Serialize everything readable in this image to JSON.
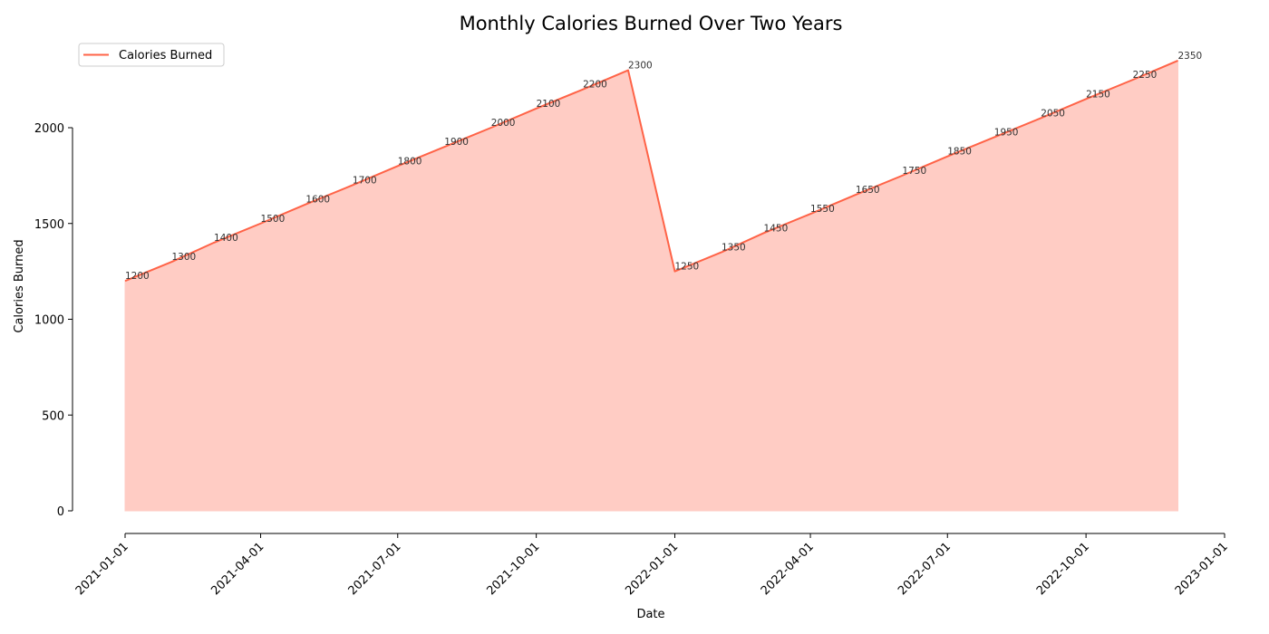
{
  "chart_data": {
    "type": "area",
    "title": "Monthly Calories Burned Over Two Years",
    "xlabel": "Date",
    "ylabel": "Calories Burned",
    "legend_position": "top-left",
    "grid": false,
    "series": [
      {
        "name": "Calories Burned",
        "color": "#ff6347",
        "fill_color": "#ffccc4",
        "x": [
          "2021-01-01",
          "2021-02-01",
          "2021-03-01",
          "2021-04-01",
          "2021-05-01",
          "2021-06-01",
          "2021-07-01",
          "2021-08-01",
          "2021-09-01",
          "2021-10-01",
          "2021-11-01",
          "2021-12-01",
          "2022-01-01",
          "2022-02-01",
          "2022-03-01",
          "2022-04-01",
          "2022-05-01",
          "2022-06-01",
          "2022-07-01",
          "2022-08-01",
          "2022-09-01",
          "2022-10-01",
          "2022-11-01",
          "2022-12-01"
        ],
        "values": [
          1200,
          1300,
          1400,
          1500,
          1600,
          1700,
          1800,
          1900,
          2000,
          2100,
          2200,
          2300,
          1250,
          1350,
          1450,
          1550,
          1650,
          1750,
          1850,
          1950,
          2050,
          2150,
          2250,
          2350
        ],
        "labels": [
          "1200",
          "1300",
          "1400",
          "1500",
          "1600",
          "1700",
          "1800",
          "1900",
          "2000",
          "2100",
          "2200",
          "2300",
          "1250",
          "1350",
          "1450",
          "1550",
          "1650",
          "1750",
          "1850",
          "1950",
          "2050",
          "2150",
          "2250",
          "2350"
        ]
      }
    ],
    "y_ticks": [
      {
        "value": 0,
        "label": "0"
      },
      {
        "value": 500,
        "label": "500"
      },
      {
        "value": 1000,
        "label": "1000"
      },
      {
        "value": 1500,
        "label": "1500"
      },
      {
        "value": 2000,
        "label": "2000"
      }
    ],
    "x_ticks": [
      {
        "value": "2021-01-01",
        "label": "2021-01-01"
      },
      {
        "value": "2021-04-01",
        "label": "2021-04-01"
      },
      {
        "value": "2021-07-01",
        "label": "2021-07-01"
      },
      {
        "value": "2021-10-01",
        "label": "2021-10-01"
      },
      {
        "value": "2022-01-01",
        "label": "2022-01-01"
      },
      {
        "value": "2022-04-01",
        "label": "2022-04-01"
      },
      {
        "value": "2022-07-01",
        "label": "2022-07-01"
      },
      {
        "value": "2022-10-01",
        "label": "2022-10-01"
      },
      {
        "value": "2023-01-01",
        "label": "2023-01-01"
      }
    ],
    "xlim": [
      "2021-01-01",
      "2023-01-01"
    ],
    "ylim": [
      0,
      2350
    ]
  }
}
